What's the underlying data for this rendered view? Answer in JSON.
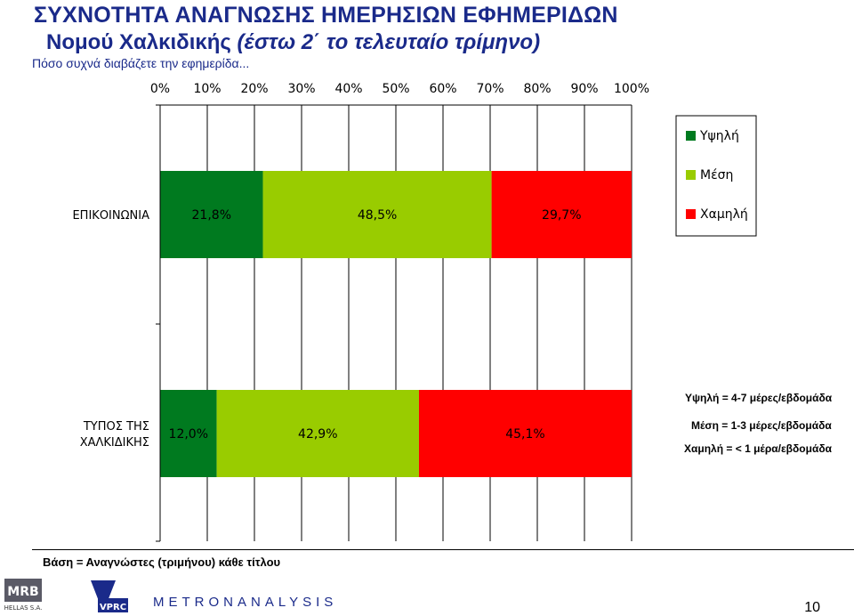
{
  "title": "ΣΥΧΝΟΤΗΤΑ ΑΝΑΓΝΩΣΗΣ ΗΜΕΡΗΣΙΩΝ ΕΦΗΜΕΡΙΔΩΝ",
  "subtitle_main": "Νομού Χαλκιδικής ",
  "subtitle_italic": "(έστω 2΄ το τελευταίο τρίμηνο)",
  "question": "Πόσο συχνά διαβάζετε την εφημερίδα...",
  "base_note": "Βάση = Αναγνώστες (τριμήνου) κάθε τίτλου",
  "definitions": [
    "Υψηλή = 4-7 μέρες/εβδομάδα",
    "Μέση = 1-3 μέρες/εβδομάδα",
    "Χαμηλή = < 1 μέρα/εβδομάδα"
  ],
  "page_number": "10",
  "logos": {
    "mrb": "MRB",
    "mrb_sub": "HELLAS S.A.",
    "vprc": "VPRC",
    "metron": "METRONANALYSIS"
  },
  "colors": {
    "high": "#007a1f",
    "mid": "#99cc00",
    "low": "#ff0000",
    "title": "#1a2a8a"
  },
  "chart_data": {
    "type": "bar",
    "orientation": "horizontal",
    "stacked": true,
    "categories": [
      "ΕΠΙΚΟΙΝΩΝΙΑ",
      "ΤΥΠΟΣ ΤΗΣ ΧΑΛΚΙΔΙΚΗΣ"
    ],
    "series": [
      {
        "name": "Υψηλή",
        "color": "#007a1f",
        "values": [
          21.8,
          12.0
        ],
        "labels": [
          "21,8%",
          "12,0%"
        ]
      },
      {
        "name": "Μέση",
        "color": "#99cc00",
        "values": [
          48.5,
          42.9
        ],
        "labels": [
          "48,5%",
          "42,9%"
        ]
      },
      {
        "name": "Χαμηλή",
        "color": "#ff0000",
        "values": [
          29.7,
          45.1
        ],
        "labels": [
          "29,7%",
          "45,1%"
        ]
      }
    ],
    "xlim": [
      0,
      100
    ],
    "xticks": [
      "0%",
      "10%",
      "20%",
      "30%",
      "40%",
      "50%",
      "60%",
      "70%",
      "80%",
      "90%",
      "100%"
    ],
    "xaxis_position": "top",
    "grid": true,
    "legend_position": "right"
  }
}
